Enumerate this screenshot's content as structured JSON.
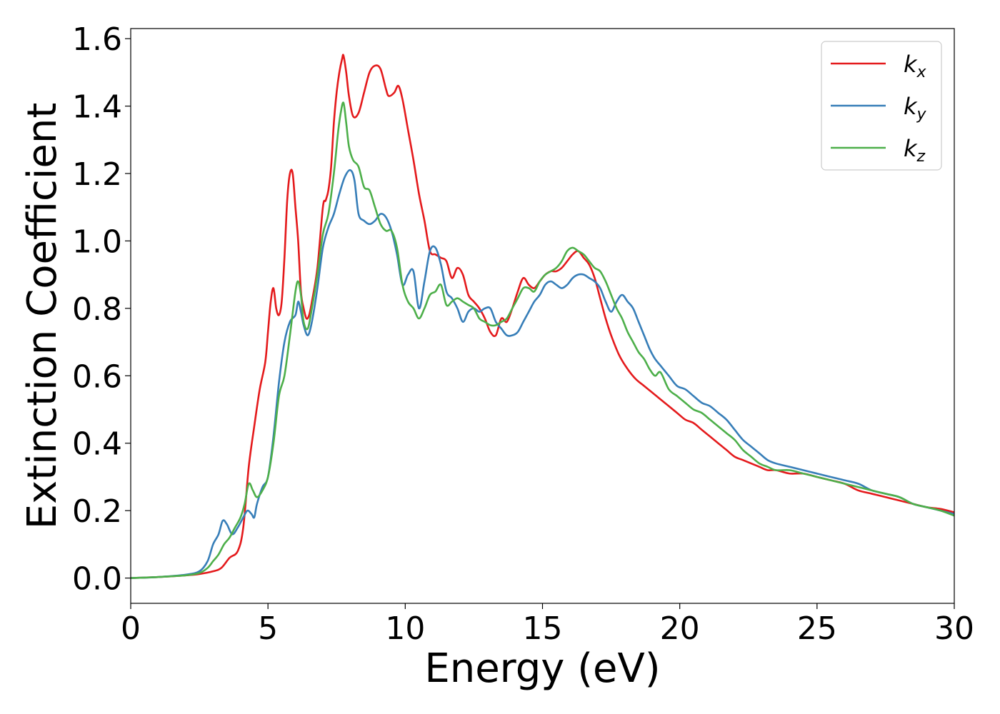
{
  "chart_data": {
    "type": "line",
    "title": "",
    "xlabel": "Energy (eV)",
    "ylabel": "Extinction Coefficient",
    "xlim": [
      0,
      30
    ],
    "ylim": [
      -0.075,
      1.63
    ],
    "xticks": [
      0,
      5,
      10,
      15,
      20,
      25,
      30
    ],
    "xtick_labels": [
      "0",
      "5",
      "10",
      "15",
      "20",
      "25",
      "30"
    ],
    "yticks": [
      0.0,
      0.2,
      0.4,
      0.6,
      0.8,
      1.0,
      1.2,
      1.4,
      1.6
    ],
    "ytick_labels": [
      "0.0",
      "0.2",
      "0.4",
      "0.6",
      "0.8",
      "1.0",
      "1.2",
      "1.4",
      "1.6"
    ],
    "grid": false,
    "legend_position": "top-right",
    "series": [
      {
        "name": "k_x",
        "label_main": "k",
        "label_sub": "x",
        "color": "#e41a1c",
        "x": [
          0,
          1,
          2,
          2.5,
          3,
          3.3,
          3.6,
          3.9,
          4.1,
          4.3,
          4.5,
          4.7,
          4.9,
          5.0,
          5.1,
          5.2,
          5.3,
          5.4,
          5.5,
          5.6,
          5.7,
          5.8,
          5.9,
          6.0,
          6.1,
          6.2,
          6.3,
          6.4,
          6.5,
          6.6,
          6.8,
          7.0,
          7.1,
          7.2,
          7.3,
          7.4,
          7.5,
          7.6,
          7.7,
          7.75,
          7.85,
          7.95,
          8.1,
          8.3,
          8.5,
          8.7,
          8.9,
          9.1,
          9.3,
          9.4,
          9.6,
          9.75,
          9.9,
          10.1,
          10.3,
          10.5,
          10.7,
          10.9,
          11.1,
          11.3,
          11.5,
          11.7,
          11.9,
          12.1,
          12.3,
          12.5,
          12.7,
          12.9,
          13.1,
          13.3,
          13.5,
          13.7,
          13.9,
          14.1,
          14.3,
          14.5,
          14.7,
          14.9,
          15.1,
          15.3,
          15.5,
          15.7,
          15.9,
          16.1,
          16.3,
          16.5,
          16.7,
          16.9,
          17.1,
          17.3,
          17.5,
          17.8,
          18.1,
          18.4,
          18.7,
          19.0,
          19.3,
          19.6,
          19.9,
          20.2,
          20.5,
          20.8,
          21.1,
          21.4,
          21.7,
          22.0,
          22.3,
          22.6,
          22.9,
          23.2,
          23.5,
          24.0,
          24.5,
          25.0,
          25.5,
          26.0,
          26.5,
          27.0,
          27.5,
          28.0,
          28.5,
          29.0,
          29.5,
          30.0
        ],
        "values": [
          0.0,
          0.003,
          0.008,
          0.012,
          0.02,
          0.03,
          0.06,
          0.08,
          0.15,
          0.33,
          0.45,
          0.56,
          0.64,
          0.73,
          0.82,
          0.86,
          0.8,
          0.78,
          0.82,
          0.95,
          1.12,
          1.2,
          1.2,
          1.1,
          1.0,
          0.85,
          0.8,
          0.77,
          0.78,
          0.82,
          0.92,
          1.1,
          1.12,
          1.15,
          1.22,
          1.35,
          1.44,
          1.5,
          1.54,
          1.55,
          1.5,
          1.43,
          1.37,
          1.38,
          1.44,
          1.5,
          1.52,
          1.51,
          1.45,
          1.43,
          1.44,
          1.46,
          1.42,
          1.33,
          1.24,
          1.14,
          1.06,
          0.97,
          0.96,
          0.95,
          0.94,
          0.89,
          0.92,
          0.9,
          0.84,
          0.82,
          0.8,
          0.77,
          0.73,
          0.72,
          0.77,
          0.76,
          0.8,
          0.85,
          0.89,
          0.87,
          0.86,
          0.88,
          0.9,
          0.91,
          0.91,
          0.92,
          0.94,
          0.96,
          0.97,
          0.95,
          0.93,
          0.89,
          0.83,
          0.77,
          0.72,
          0.66,
          0.62,
          0.59,
          0.57,
          0.55,
          0.53,
          0.51,
          0.49,
          0.47,
          0.46,
          0.44,
          0.42,
          0.4,
          0.38,
          0.36,
          0.35,
          0.34,
          0.33,
          0.32,
          0.32,
          0.31,
          0.31,
          0.3,
          0.29,
          0.28,
          0.26,
          0.25,
          0.24,
          0.23,
          0.22,
          0.21,
          0.205,
          0.195
        ]
      },
      {
        "name": "k_y",
        "label_main": "k",
        "label_sub": "y",
        "color": "#377eb8",
        "x": [
          0,
          1,
          2,
          2.5,
          2.8,
          3.0,
          3.2,
          3.35,
          3.5,
          3.7,
          3.9,
          4.1,
          4.25,
          4.4,
          4.5,
          4.6,
          4.8,
          5.0,
          5.2,
          5.4,
          5.6,
          5.8,
          6.0,
          6.1,
          6.2,
          6.3,
          6.45,
          6.6,
          6.8,
          7.0,
          7.2,
          7.4,
          7.6,
          7.8,
          8.0,
          8.15,
          8.3,
          8.5,
          8.7,
          8.9,
          9.1,
          9.3,
          9.5,
          9.7,
          9.9,
          10.1,
          10.3,
          10.5,
          10.7,
          10.9,
          11.1,
          11.3,
          11.5,
          11.7,
          11.9,
          12.1,
          12.3,
          12.5,
          12.7,
          12.9,
          13.1,
          13.3,
          13.5,
          13.7,
          13.9,
          14.1,
          14.3,
          14.5,
          14.7,
          14.9,
          15.1,
          15.3,
          15.5,
          15.7,
          15.9,
          16.1,
          16.3,
          16.5,
          16.7,
          16.9,
          17.1,
          17.3,
          17.5,
          17.7,
          17.9,
          18.1,
          18.3,
          18.5,
          18.7,
          18.9,
          19.1,
          19.3,
          19.6,
          19.9,
          20.2,
          20.5,
          20.8,
          21.1,
          21.4,
          21.7,
          22.0,
          22.3,
          22.6,
          22.9,
          23.2,
          23.5,
          24.0,
          24.5,
          25.0,
          25.5,
          26.0,
          26.5,
          27.0,
          27.5,
          28.0,
          28.5,
          29.0,
          29.5,
          30.0
        ],
        "values": [
          0.0,
          0.003,
          0.01,
          0.02,
          0.05,
          0.1,
          0.13,
          0.17,
          0.16,
          0.13,
          0.15,
          0.18,
          0.2,
          0.19,
          0.18,
          0.22,
          0.27,
          0.3,
          0.42,
          0.58,
          0.7,
          0.76,
          0.78,
          0.82,
          0.79,
          0.75,
          0.72,
          0.76,
          0.86,
          0.98,
          1.04,
          1.08,
          1.14,
          1.19,
          1.21,
          1.18,
          1.08,
          1.06,
          1.05,
          1.06,
          1.08,
          1.07,
          1.03,
          0.96,
          0.87,
          0.9,
          0.91,
          0.8,
          0.88,
          0.97,
          0.98,
          0.93,
          0.85,
          0.83,
          0.8,
          0.76,
          0.79,
          0.8,
          0.79,
          0.8,
          0.8,
          0.76,
          0.74,
          0.72,
          0.72,
          0.73,
          0.76,
          0.79,
          0.82,
          0.84,
          0.87,
          0.88,
          0.87,
          0.86,
          0.87,
          0.89,
          0.9,
          0.9,
          0.89,
          0.88,
          0.86,
          0.82,
          0.79,
          0.82,
          0.84,
          0.82,
          0.8,
          0.76,
          0.72,
          0.68,
          0.65,
          0.63,
          0.6,
          0.57,
          0.56,
          0.54,
          0.52,
          0.51,
          0.49,
          0.47,
          0.44,
          0.41,
          0.39,
          0.37,
          0.35,
          0.34,
          0.33,
          0.32,
          0.31,
          0.3,
          0.29,
          0.28,
          0.26,
          0.25,
          0.24,
          0.22,
          0.21,
          0.2,
          0.19
        ]
      },
      {
        "name": "k_z",
        "label_main": "k",
        "label_sub": "z",
        "color": "#4daf4a",
        "x": [
          0,
          1,
          2,
          2.5,
          2.8,
          3.0,
          3.2,
          3.4,
          3.6,
          3.8,
          4.0,
          4.15,
          4.3,
          4.45,
          4.6,
          4.8,
          5.0,
          5.2,
          5.4,
          5.6,
          5.8,
          6.0,
          6.1,
          6.2,
          6.3,
          6.45,
          6.6,
          6.8,
          7.0,
          7.2,
          7.4,
          7.55,
          7.65,
          7.75,
          7.85,
          7.95,
          8.1,
          8.3,
          8.5,
          8.7,
          8.9,
          9.1,
          9.3,
          9.5,
          9.7,
          9.9,
          10.1,
          10.3,
          10.5,
          10.7,
          10.9,
          11.1,
          11.3,
          11.5,
          11.7,
          11.9,
          12.1,
          12.3,
          12.5,
          12.7,
          12.9,
          13.1,
          13.3,
          13.5,
          13.7,
          13.9,
          14.1,
          14.3,
          14.5,
          14.7,
          14.9,
          15.1,
          15.3,
          15.5,
          15.7,
          15.9,
          16.1,
          16.3,
          16.5,
          16.7,
          16.9,
          17.1,
          17.3,
          17.5,
          17.7,
          17.9,
          18.1,
          18.3,
          18.5,
          18.7,
          18.9,
          19.1,
          19.3,
          19.6,
          19.9,
          20.2,
          20.5,
          20.8,
          21.1,
          21.4,
          21.7,
          22.0,
          22.3,
          22.6,
          22.9,
          23.2,
          23.5,
          24.0,
          24.5,
          25.0,
          25.5,
          26.0,
          26.5,
          27.0,
          27.5,
          28.0,
          28.5,
          29.0,
          29.5,
          30.0
        ],
        "values": [
          0.0,
          0.003,
          0.008,
          0.015,
          0.03,
          0.05,
          0.07,
          0.1,
          0.12,
          0.15,
          0.18,
          0.22,
          0.28,
          0.26,
          0.24,
          0.26,
          0.3,
          0.4,
          0.54,
          0.6,
          0.72,
          0.85,
          0.88,
          0.84,
          0.76,
          0.74,
          0.8,
          0.9,
          1.02,
          1.08,
          1.2,
          1.32,
          1.38,
          1.41,
          1.35,
          1.28,
          1.24,
          1.22,
          1.16,
          1.15,
          1.1,
          1.05,
          1.03,
          1.03,
          0.98,
          0.87,
          0.82,
          0.8,
          0.77,
          0.8,
          0.84,
          0.85,
          0.87,
          0.81,
          0.82,
          0.83,
          0.82,
          0.81,
          0.8,
          0.77,
          0.76,
          0.75,
          0.75,
          0.76,
          0.77,
          0.8,
          0.83,
          0.86,
          0.86,
          0.85,
          0.88,
          0.9,
          0.91,
          0.92,
          0.94,
          0.97,
          0.98,
          0.97,
          0.96,
          0.94,
          0.92,
          0.91,
          0.88,
          0.84,
          0.8,
          0.77,
          0.73,
          0.7,
          0.67,
          0.65,
          0.62,
          0.6,
          0.61,
          0.56,
          0.54,
          0.52,
          0.5,
          0.49,
          0.47,
          0.45,
          0.43,
          0.41,
          0.38,
          0.36,
          0.34,
          0.33,
          0.32,
          0.32,
          0.31,
          0.3,
          0.29,
          0.28,
          0.27,
          0.26,
          0.25,
          0.24,
          0.22,
          0.21,
          0.2,
          0.185
        ]
      }
    ]
  }
}
